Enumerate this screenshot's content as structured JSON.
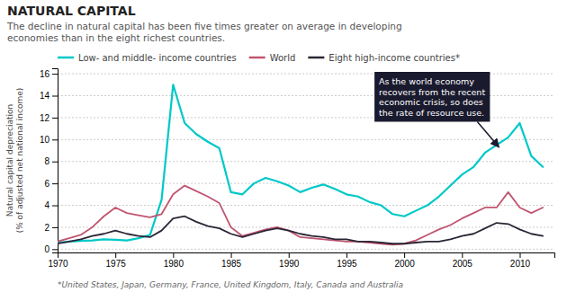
{
  "chart_data": {
    "type": "line",
    "title": "NATURAL CAPITAL",
    "subtitle": "The decline in natural capital has been five times greater on average in developing\neconomies than in the eight richest countries.",
    "footnote": "*United States, Japan, Germany, France, United Kingdom, Italy, Canada and Australia",
    "y_label": "Natural capital depreciation\n(% of adjusted net national income)",
    "annotations": [
      {
        "text": "As the world economy\nrecovers from the recent\neconomic crisis, so does\nthe rate of resource use.",
        "x": 2008.2,
        "y": 9.3
      }
    ],
    "x": [
      1970,
      1971,
      1972,
      1973,
      1974,
      1975,
      1976,
      1977,
      1978,
      1979,
      1980,
      1981,
      1982,
      1983,
      1984,
      1985,
      1986,
      1987,
      1988,
      1989,
      1990,
      1991,
      1992,
      1993,
      1994,
      1995,
      1996,
      1997,
      1998,
      1999,
      2000,
      2001,
      2002,
      2003,
      2004,
      2005,
      2006,
      2007,
      2008,
      2009,
      2010,
      2011,
      2012
    ],
    "series": [
      {
        "name": "Low- and middle- income countries",
        "color": "#00c8c8",
        "values": [
          0.6,
          0.7,
          0.75,
          0.8,
          0.9,
          0.85,
          0.8,
          1.0,
          1.3,
          4.5,
          15.0,
          11.5,
          10.5,
          9.8,
          9.2,
          5.2,
          5.0,
          6.0,
          6.5,
          6.2,
          5.8,
          5.2,
          5.6,
          5.9,
          5.5,
          5.0,
          4.8,
          4.3,
          4.0,
          3.2,
          3.0,
          3.5,
          4.0,
          4.8,
          5.8,
          6.8,
          7.5,
          8.8,
          9.5,
          10.2,
          11.5,
          8.5,
          7.5
        ]
      },
      {
        "name": "World",
        "color": "#c05570",
        "values": [
          0.7,
          1.0,
          1.3,
          2.0,
          3.0,
          3.8,
          3.3,
          3.1,
          2.9,
          3.2,
          5.0,
          5.8,
          5.3,
          4.8,
          4.2,
          2.0,
          1.2,
          1.5,
          1.8,
          2.0,
          1.7,
          1.1,
          1.0,
          0.9,
          0.8,
          0.7,
          0.7,
          0.6,
          0.5,
          0.4,
          0.5,
          0.8,
          1.3,
          1.8,
          2.2,
          2.8,
          3.3,
          3.8,
          3.8,
          5.2,
          3.8,
          3.3,
          3.8
        ]
      },
      {
        "name": "Eight high-income countries*",
        "color": "#2b2535",
        "values": [
          0.5,
          0.7,
          0.9,
          1.2,
          1.4,
          1.7,
          1.4,
          1.2,
          1.1,
          1.7,
          2.8,
          3.0,
          2.5,
          2.1,
          1.9,
          1.4,
          1.1,
          1.4,
          1.7,
          1.9,
          1.7,
          1.4,
          1.2,
          1.1,
          0.9,
          0.9,
          0.7,
          0.7,
          0.6,
          0.5,
          0.5,
          0.6,
          0.7,
          0.7,
          0.9,
          1.2,
          1.4,
          1.9,
          2.4,
          2.3,
          1.8,
          1.4,
          1.2
        ]
      }
    ],
    "xlim": [
      1970,
      2013
    ],
    "ylim": [
      -0.3,
      16.5
    ],
    "xticks": [
      1970,
      1975,
      1980,
      1985,
      1990,
      1995,
      2000,
      2005,
      2010
    ],
    "yticks": [
      0,
      2,
      4,
      6,
      8,
      10,
      12,
      14,
      16
    ],
    "grid": true,
    "legend": "upper left"
  }
}
